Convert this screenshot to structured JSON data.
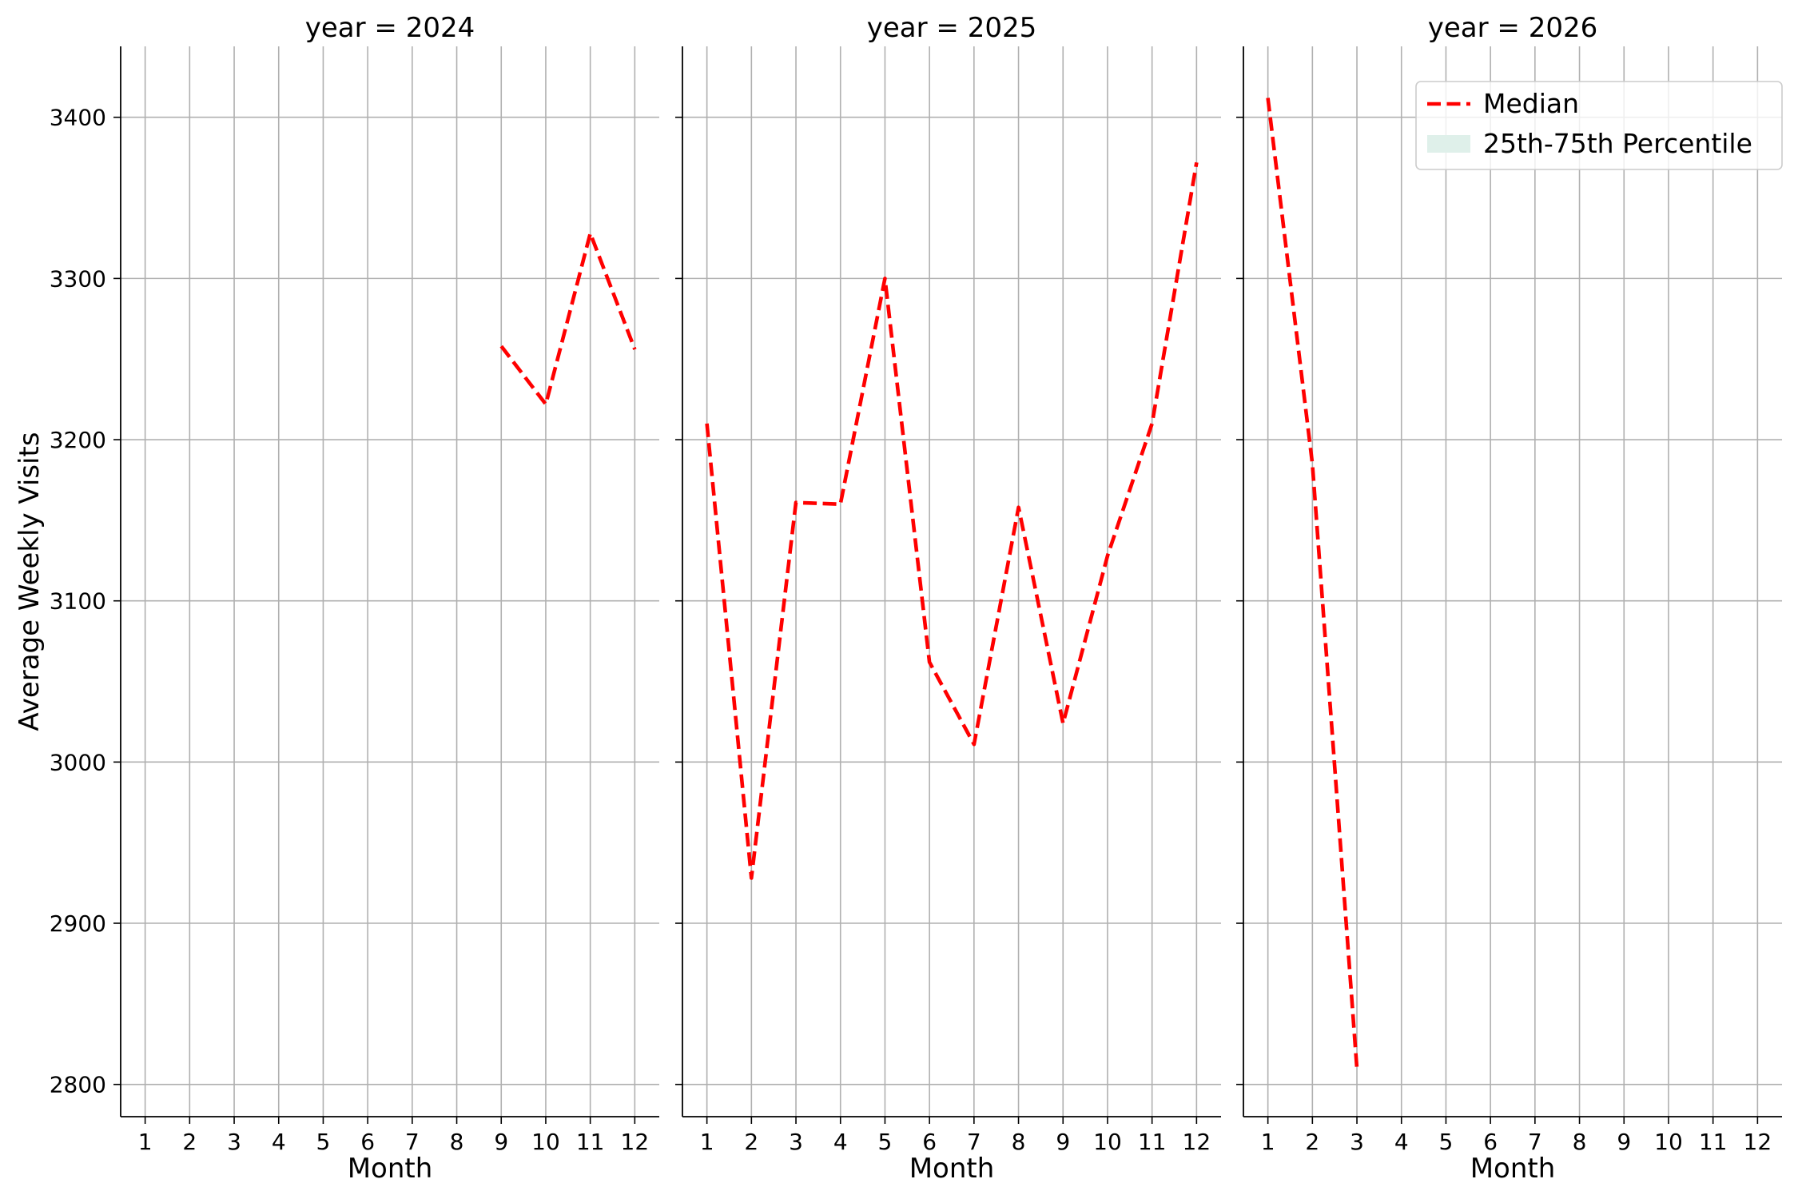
{
  "chart_data": [
    {
      "type": "line",
      "title": "year = 2024",
      "xlabel": "Month",
      "ylabel": "Average Weekly Visits",
      "x_ticks": [
        1,
        2,
        3,
        4,
        5,
        6,
        7,
        8,
        9,
        10,
        11,
        12
      ],
      "y_ticks": [
        2800,
        2900,
        3000,
        3100,
        3200,
        3300,
        3400
      ],
      "xlim": [
        0.45,
        12.55
      ],
      "ylim": [
        2780,
        3444
      ],
      "grid": true,
      "series": [
        {
          "name": "Median",
          "style": "dashed",
          "color": "#ff0000",
          "points": [
            {
              "x": 9,
              "y": 3258
            },
            {
              "x": 10,
              "y": 3222
            },
            {
              "x": 11,
              "y": 3328
            },
            {
              "x": 12,
              "y": 3256
            }
          ]
        }
      ]
    },
    {
      "type": "line",
      "title": "year = 2025",
      "xlabel": "Month",
      "ylabel": "",
      "x_ticks": [
        1,
        2,
        3,
        4,
        5,
        6,
        7,
        8,
        9,
        10,
        11,
        12
      ],
      "y_ticks": [
        2800,
        2900,
        3000,
        3100,
        3200,
        3300,
        3400
      ],
      "xlim": [
        0.45,
        12.55
      ],
      "ylim": [
        2780,
        3444
      ],
      "grid": true,
      "series": [
        {
          "name": "Median",
          "style": "dashed",
          "color": "#ff0000",
          "points": [
            {
              "x": 1,
              "y": 3210
            },
            {
              "x": 2,
              "y": 2928
            },
            {
              "x": 3,
              "y": 3161
            },
            {
              "x": 4,
              "y": 3160
            },
            {
              "x": 5,
              "y": 3300
            },
            {
              "x": 6,
              "y": 3062
            },
            {
              "x": 7,
              "y": 3011
            },
            {
              "x": 8,
              "y": 3158
            },
            {
              "x": 9,
              "y": 3024
            },
            {
              "x": 10,
              "y": 3128
            },
            {
              "x": 11,
              "y": 3210
            },
            {
              "x": 12,
              "y": 3372
            }
          ]
        }
      ]
    },
    {
      "type": "line",
      "title": "year = 2026",
      "xlabel": "Month",
      "ylabel": "",
      "x_ticks": [
        1,
        2,
        3,
        4,
        5,
        6,
        7,
        8,
        9,
        10,
        11,
        12
      ],
      "y_ticks": [
        2800,
        2900,
        3000,
        3100,
        3200,
        3300,
        3400
      ],
      "xlim": [
        0.45,
        12.55
      ],
      "ylim": [
        2780,
        3444
      ],
      "grid": true,
      "legend": {
        "position": "top-right",
        "entries": [
          {
            "label": "Median",
            "kind": "line",
            "style": "dashed",
            "color": "#ff0000"
          },
          {
            "label": "25th-75th Percentile",
            "kind": "patch",
            "color": "#dff0ea"
          }
        ]
      },
      "series": [
        {
          "name": "Median",
          "style": "dashed",
          "color": "#ff0000",
          "points": [
            {
              "x": 1,
              "y": 3412
            },
            {
              "x": 2,
              "y": 3185
            },
            {
              "x": 3,
              "y": 2810
            }
          ]
        }
      ]
    }
  ]
}
